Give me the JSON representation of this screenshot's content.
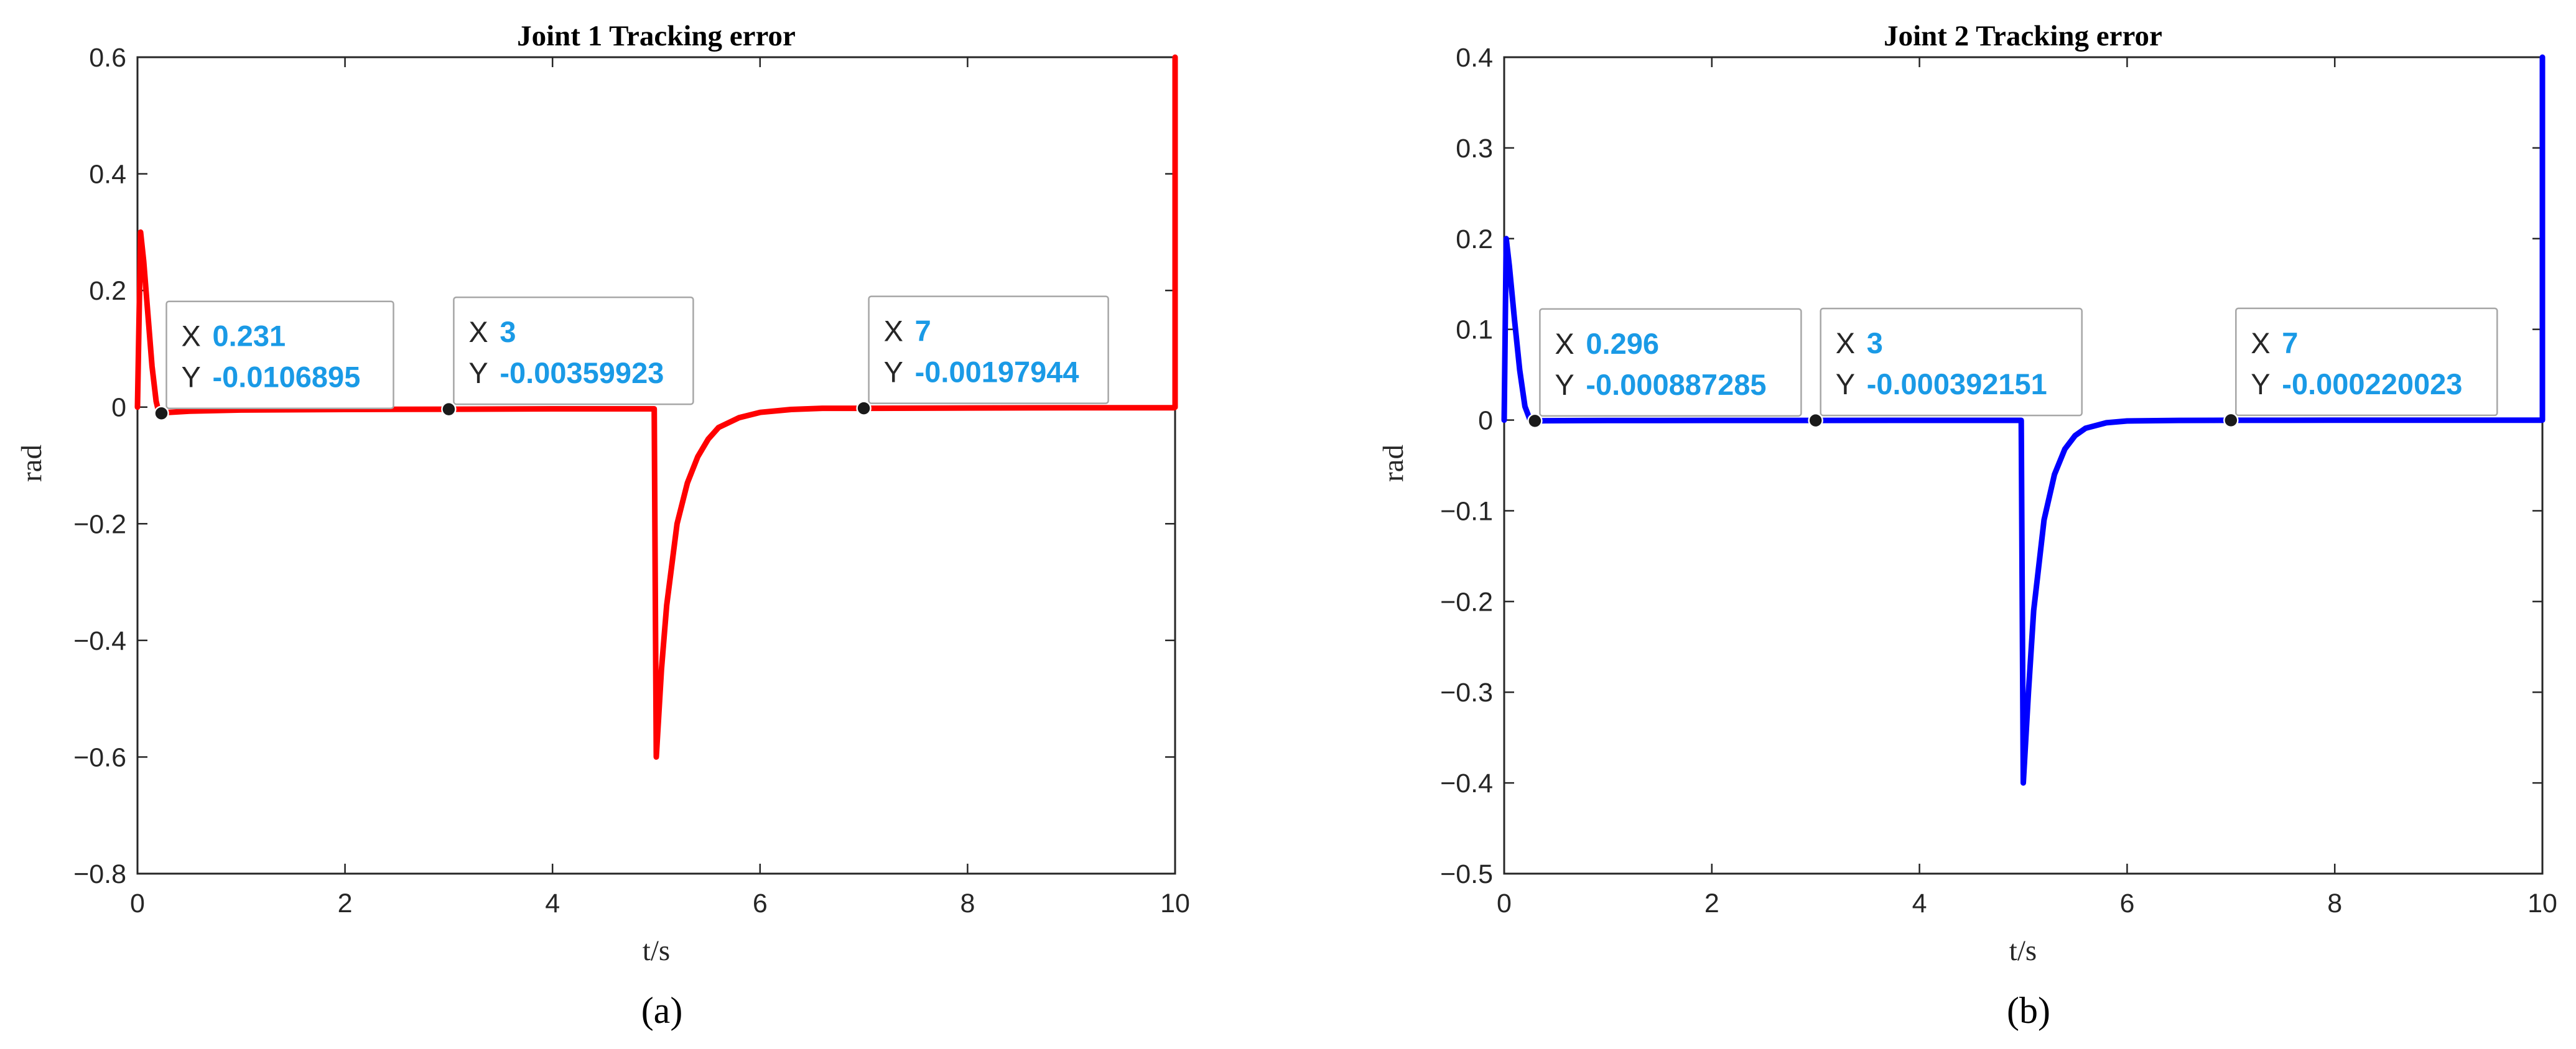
{
  "chart_data": [
    {
      "type": "line",
      "title": "Joint 1 Tracking error",
      "xlabel": "t/s",
      "ylabel": "rad",
      "panel_label": "(a)",
      "xlim": [
        0,
        10
      ],
      "ylim": [
        -0.8,
        0.6
      ],
      "xticks": [
        0,
        2,
        4,
        6,
        8,
        10
      ],
      "yticks": [
        -0.8,
        -0.6,
        -0.4,
        -0.2,
        0,
        0.2,
        0.4,
        0.6
      ],
      "grid": false,
      "line_color": "#ff0000",
      "series": [
        {
          "x": [
            0,
            0.03,
            0.06,
            0.1,
            0.14,
            0.18,
            0.2,
            0.231,
            0.3,
            0.5,
            1,
            2,
            3,
            4,
            4.98,
            4.99,
            5.0,
            5.05,
            5.1,
            5.2,
            5.3,
            5.4,
            5.5,
            5.6,
            5.8,
            6.0,
            6.3,
            6.6,
            7,
            8,
            9,
            9.99,
            10.0,
            10.0
          ],
          "y": [
            0.0,
            0.3,
            0.25,
            0.16,
            0.07,
            0.01,
            -0.005,
            -0.0107,
            -0.009,
            -0.007,
            -0.005,
            -0.004,
            -0.0036,
            -0.003,
            -0.003,
            -0.3,
            -0.6,
            -0.45,
            -0.34,
            -0.2,
            -0.13,
            -0.085,
            -0.055,
            -0.035,
            -0.018,
            -0.009,
            -0.004,
            -0.002,
            -0.002,
            -0.0015,
            -0.0012,
            -0.001,
            0.0,
            0.6
          ]
        }
      ],
      "datatips": [
        {
          "x_key": "X",
          "x": "0.231",
          "y_key": "Y",
          "y": "-0.0106895",
          "px": 0.231,
          "py": -0.0106895
        },
        {
          "x_key": "X",
          "x": "3",
          "y_key": "Y",
          "y": "-0.00359923",
          "px": 3,
          "py": -0.00359923
        },
        {
          "x_key": "X",
          "x": "7",
          "y_key": "Y",
          "y": "-0.00197944",
          "px": 7,
          "py": -0.00197944
        }
      ]
    },
    {
      "type": "line",
      "title": "Joint 2 Tracking error",
      "xlabel": "t/s",
      "ylabel": "rad",
      "panel_label": "(b)",
      "xlim": [
        0,
        10
      ],
      "ylim": [
        -0.5,
        0.4
      ],
      "xticks": [
        0,
        2,
        4,
        6,
        8,
        10
      ],
      "yticks": [
        -0.5,
        -0.4,
        -0.3,
        -0.2,
        -0.1,
        0,
        0.1,
        0.2,
        0.3,
        0.4
      ],
      "grid": false,
      "line_color": "#0000ff",
      "series": [
        {
          "x": [
            0,
            0.02,
            0.05,
            0.1,
            0.15,
            0.2,
            0.25,
            0.296,
            0.4,
            1,
            2,
            3,
            4,
            4.98,
            4.99,
            5.0,
            5.05,
            5.1,
            5.2,
            5.3,
            5.4,
            5.5,
            5.6,
            5.8,
            6.0,
            6.5,
            7,
            8,
            9,
            9.99,
            10.0,
            10.0
          ],
          "y": [
            0.0,
            0.2,
            0.17,
            0.11,
            0.055,
            0.015,
            0.0,
            -0.00089,
            -0.0007,
            -0.0005,
            -0.0004,
            -0.00039,
            -0.0003,
            -0.0003,
            -0.2,
            -0.4,
            -0.3,
            -0.21,
            -0.11,
            -0.06,
            -0.032,
            -0.017,
            -0.009,
            -0.003,
            -0.001,
            -0.0004,
            -0.00022,
            -0.0002,
            -0.0001,
            -0.0001,
            0.0,
            0.4
          ]
        }
      ],
      "datatips": [
        {
          "x_key": "X",
          "x": "0.296",
          "y_key": "Y",
          "y": "-0.000887285",
          "px": 0.296,
          "py": -0.000887285
        },
        {
          "x_key": "X",
          "x": "3",
          "y_key": "Y",
          "y": "-0.000392151",
          "px": 3,
          "py": -0.000392151
        },
        {
          "x_key": "X",
          "x": "7",
          "y_key": "Y",
          "y": "-0.000220023",
          "px": 7,
          "py": -0.000220023
        }
      ]
    }
  ]
}
